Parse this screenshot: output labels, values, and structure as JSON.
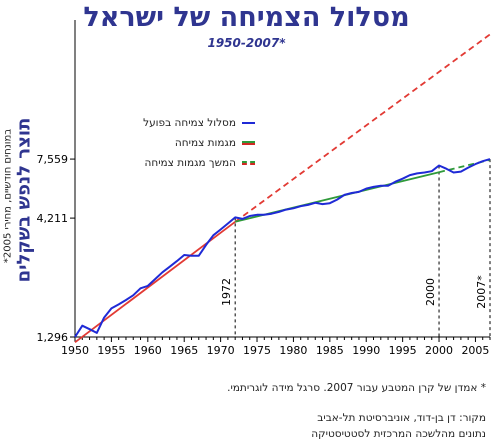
{
  "title": "מסלול הצמיחה של ישראל",
  "subtitle": "1950-2007*",
  "ylabel": "תוצר לנפש בשקלים",
  "ylabel_sub": "במונחים חודשיים, מחירי 2005*",
  "legend": {
    "actual": "מסלול צמיחה בפועל",
    "trend": "מגמות צמיחה",
    "trend_cont": "המשך מגמות צמיחה"
  },
  "note": "* אמדן של קרן המטבע עבור 2007. סרגל מידה לוגריתמי.",
  "source_line1": "מקור: דן בן-דוד, אוניברסיטת תל-אביב",
  "source_line2": "נתונים מהלשכה המרכזית לסטטיסטיקה",
  "colors": {
    "actual": "#1f2ad6",
    "trend_red": "#e23a34",
    "trend_green": "#2f9a3a",
    "title": "#2f3590"
  },
  "chart_data": {
    "type": "line",
    "y_scale": "log",
    "xlim": [
      1950,
      2007
    ],
    "ylim": [
      1296,
      30000
    ],
    "x_ticks": [
      1950,
      1955,
      1960,
      1965,
      1970,
      1975,
      1980,
      1985,
      1990,
      1995,
      2000,
      2005
    ],
    "y_ticks": [
      {
        "value": 1296,
        "label": "1,296"
      },
      {
        "value": 4211,
        "label": "4,211"
      },
      {
        "value": 7559,
        "label": "7,559"
      }
    ],
    "vlines": [
      {
        "x": 1972,
        "label": "1972"
      },
      {
        "x": 2000,
        "label": "2000"
      },
      {
        "x": 2007,
        "label": "2007*"
      }
    ],
    "series": [
      {
        "name": "מסלול צמיחה בפועל",
        "style": "solid",
        "x": [
          1950,
          1951,
          1952,
          1953,
          1954,
          1955,
          1956,
          1957,
          1958,
          1959,
          1960,
          1961,
          1962,
          1963,
          1964,
          1965,
          1966,
          1967,
          1968,
          1969,
          1970,
          1971,
          1972,
          1973,
          1974,
          1975,
          1976,
          1977,
          1978,
          1979,
          1980,
          1981,
          1982,
          1983,
          1984,
          1985,
          1986,
          1987,
          1988,
          1989,
          1990,
          1991,
          1992,
          1993,
          1994,
          1995,
          1996,
          1997,
          1998,
          1999,
          2000,
          2001,
          2002,
          2003,
          2004,
          2005,
          2006,
          2007
        ],
        "values": [
          1296,
          1450,
          1400,
          1350,
          1570,
          1720,
          1790,
          1870,
          1960,
          2100,
          2150,
          2300,
          2460,
          2600,
          2750,
          2920,
          2900,
          2900,
          3230,
          3550,
          3760,
          3990,
          4240,
          4180,
          4300,
          4350,
          4350,
          4400,
          4480,
          4580,
          4640,
          4740,
          4800,
          4900,
          4840,
          4880,
          5060,
          5300,
          5400,
          5460,
          5640,
          5740,
          5800,
          5800,
          6040,
          6220,
          6450,
          6560,
          6620,
          6700,
          7090,
          6870,
          6620,
          6680,
          6950,
          7190,
          7400,
          7559
        ]
      },
      {
        "name": "מגמות צמיחה",
        "style": "solid",
        "x": [
          1950,
          1972
        ],
        "values": [
          1230,
          4060
        ]
      },
      {
        "name": "מגמות צמיחה",
        "style": "solid",
        "x": [
          1972,
          2000
        ],
        "values": [
          4060,
          6640
        ]
      },
      {
        "name": "המשך מגמות צמיחה",
        "style": "dashed",
        "x": [
          1972,
          2007
        ],
        "values": [
          4060,
          26000
        ]
      },
      {
        "name": "המשך מגמות צמיחה",
        "style": "dashed",
        "x": [
          2000,
          2007
        ],
        "values": [
          6640,
          7500
        ]
      }
    ]
  }
}
